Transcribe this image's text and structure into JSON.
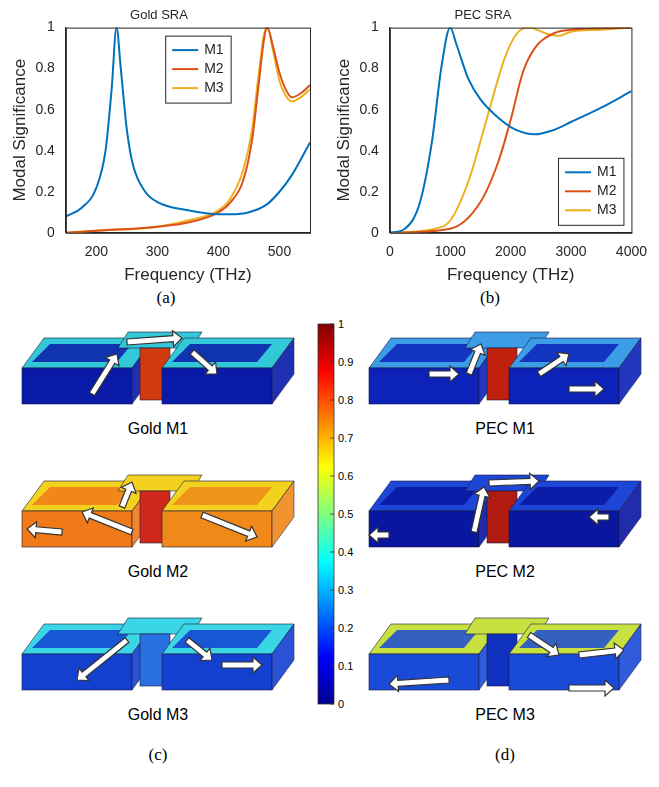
{
  "chart_data": [
    {
      "type": "line",
      "title": "Gold SRA",
      "label": "(a)",
      "xlabel": "Frequency (THz)",
      "ylabel": "Modal Significance",
      "xlim": [
        150,
        550
      ],
      "xticks": [
        200,
        300,
        400,
        500
      ],
      "ylim": [
        0,
        1
      ],
      "yticks": [
        0,
        0.2,
        0.4,
        0.6,
        0.8,
        1
      ],
      "grid": false,
      "legend": "upper center",
      "series": [
        {
          "name": "M1",
          "color": "#0072BD",
          "x": [
            150,
            175,
            200,
            215,
            225,
            233,
            240,
            250,
            260,
            280,
            300,
            350,
            400,
            420,
            450,
            480,
            500,
            520,
            550
          ],
          "values": [
            0.08,
            0.12,
            0.22,
            0.4,
            0.7,
            1.0,
            0.8,
            0.5,
            0.33,
            0.2,
            0.15,
            0.11,
            0.09,
            0.09,
            0.1,
            0.14,
            0.2,
            0.28,
            0.44
          ]
        },
        {
          "name": "M2",
          "color": "#D95319",
          "x": [
            150,
            200,
            300,
            350,
            400,
            420,
            440,
            455,
            465,
            475,
            480,
            490,
            500,
            510,
            520,
            535,
            550
          ],
          "values": [
            0,
            0.01,
            0.03,
            0.05,
            0.1,
            0.15,
            0.25,
            0.45,
            0.7,
            0.95,
            1.0,
            0.9,
            0.78,
            0.7,
            0.66,
            0.68,
            0.72
          ]
        },
        {
          "name": "M3",
          "color": "#EDB120",
          "x": [
            150,
            200,
            300,
            350,
            400,
            420,
            440,
            455,
            465,
            475,
            480,
            490,
            500,
            510,
            520,
            535,
            550
          ],
          "values": [
            0,
            0.01,
            0.03,
            0.06,
            0.11,
            0.17,
            0.3,
            0.5,
            0.75,
            0.97,
            1.0,
            0.88,
            0.74,
            0.67,
            0.64,
            0.66,
            0.7
          ]
        }
      ]
    },
    {
      "type": "line",
      "title": "PEC SRA",
      "label": "(b)",
      "xlabel": "Frequency (THz)",
      "ylabel": "Modal Significance",
      "xlim": [
        0,
        4000
      ],
      "xticks": [
        0,
        1000,
        2000,
        3000,
        4000
      ],
      "ylim": [
        0,
        1
      ],
      "yticks": [
        0,
        0.2,
        0.4,
        0.6,
        0.8,
        1
      ],
      "grid": false,
      "legend": "lower right",
      "series": [
        {
          "name": "M1",
          "color": "#0072BD",
          "x": [
            0,
            250,
            500,
            700,
            850,
            1000,
            1100,
            1300,
            1500,
            1800,
            2100,
            2400,
            2700,
            3000,
            3500,
            4000
          ],
          "values": [
            0,
            0.02,
            0.15,
            0.45,
            0.8,
            1.0,
            0.92,
            0.75,
            0.65,
            0.56,
            0.5,
            0.48,
            0.5,
            0.54,
            0.61,
            0.69
          ]
        },
        {
          "name": "M2",
          "color": "#D95319",
          "x": [
            0,
            1000,
            1500,
            1800,
            2000,
            2200,
            2400,
            2700,
            3000,
            4000
          ],
          "values": [
            0,
            0.02,
            0.15,
            0.35,
            0.55,
            0.78,
            0.9,
            0.97,
            0.99,
            1.0
          ]
        },
        {
          "name": "M3",
          "color": "#EDB120",
          "x": [
            0,
            750,
            1000,
            1300,
            1600,
            1900,
            2100,
            2300,
            2600,
            2800,
            3000,
            3500,
            4000
          ],
          "values": [
            0,
            0.02,
            0.06,
            0.25,
            0.55,
            0.85,
            0.97,
            1.0,
            0.97,
            0.96,
            0.98,
            0.99,
            1.0
          ]
        }
      ]
    }
  ],
  "diagram": {
    "colorbar": {
      "range": [
        0,
        1
      ],
      "ticks": [
        0,
        0.1,
        0.2,
        0.3,
        0.4,
        0.5,
        0.6,
        0.7,
        0.8,
        0.9,
        1
      ]
    },
    "panels": [
      {
        "label": "(c)",
        "items": [
          "Gold M1",
          "Gold M2",
          "Gold M3"
        ]
      },
      {
        "label": "(d)",
        "items": [
          "PEC M1",
          "PEC M2",
          "PEC M3"
        ]
      }
    ]
  }
}
